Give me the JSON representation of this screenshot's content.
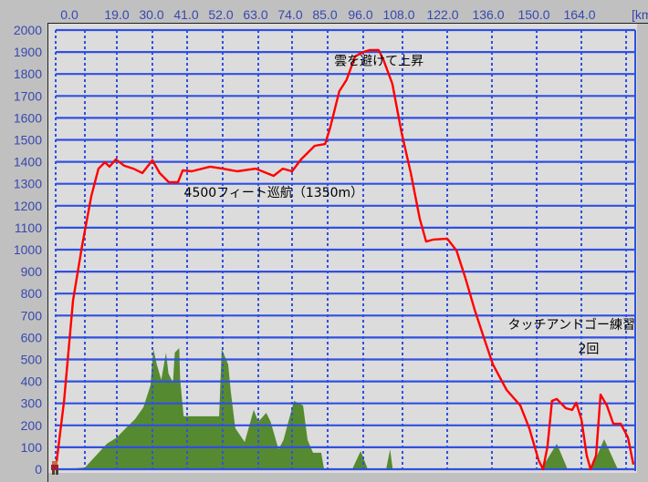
{
  "chart_data": {
    "type": "area",
    "title": "",
    "xlabel": "[km]",
    "ylabel": "",
    "x_tick_labels": [
      "0.0",
      "19.0",
      "30.0",
      "41.0",
      "52.0",
      "63.0",
      "74.0",
      "85.0",
      "96.0",
      "108.0",
      "122.0",
      "136.0",
      "150.0",
      "164.0"
    ],
    "y_tick_labels": [
      "2000",
      "1900",
      "1800",
      "1700",
      "1600",
      "1500",
      "1400",
      "1300",
      "1200",
      "1100",
      "1000",
      "900",
      "800",
      "700",
      "600",
      "500",
      "400",
      "300",
      "200",
      "100",
      "0"
    ],
    "ylim": [
      0,
      2000
    ],
    "xlim": [
      0,
      181
    ],
    "grid": true,
    "x_scale": "non-uniform (tick labels at equal-ish intervals)",
    "colors": {
      "altitude": "#ff0000",
      "terrain": "#558a30",
      "grid": "#3050e0",
      "plot_bg": "#dcdcdc",
      "outer_bg": "#c0c0c0",
      "tick_text": "#3848b0"
    },
    "series": [
      {
        "key": "altitude",
        "points": [
          [
            0,
            0
          ],
          [
            2.6,
            311
          ],
          [
            5.4,
            768
          ],
          [
            8.2,
            1017
          ],
          [
            11.1,
            1245
          ],
          [
            13.3,
            1369
          ],
          [
            15.3,
            1398
          ],
          [
            16.7,
            1378
          ],
          [
            18.7,
            1411
          ],
          [
            21.3,
            1382
          ],
          [
            24.1,
            1369
          ],
          [
            26.9,
            1349
          ],
          [
            30,
            1407
          ],
          [
            32.3,
            1349
          ],
          [
            35.2,
            1307
          ],
          [
            38.1,
            1307
          ],
          [
            39.6,
            1361
          ],
          [
            42.4,
            1357
          ],
          [
            48.1,
            1378
          ],
          [
            52,
            1369
          ],
          [
            56.5,
            1357
          ],
          [
            62.2,
            1369
          ],
          [
            68,
            1336
          ],
          [
            71,
            1369
          ],
          [
            74,
            1357
          ],
          [
            76.8,
            1411
          ],
          [
            81,
            1473
          ],
          [
            84.2,
            1481
          ],
          [
            85.8,
            1556
          ],
          [
            88.6,
            1722
          ],
          [
            90.8,
            1772
          ],
          [
            93.5,
            1880
          ],
          [
            96,
            1900
          ],
          [
            98,
            1909
          ],
          [
            100.7,
            1909
          ],
          [
            102.1,
            1867
          ],
          [
            104.9,
            1755
          ],
          [
            107.7,
            1535
          ],
          [
            110.6,
            1349
          ],
          [
            113.4,
            1141
          ],
          [
            115.4,
            1037
          ],
          [
            117.7,
            1046
          ],
          [
            122,
            1050
          ],
          [
            124.9,
            996
          ],
          [
            127.7,
            871
          ],
          [
            130.6,
            726
          ],
          [
            133.4,
            602
          ],
          [
            136.3,
            477
          ],
          [
            140.6,
            361
          ],
          [
            144.9,
            290
          ],
          [
            147.7,
            187
          ],
          [
            150.6,
            41
          ],
          [
            152,
            0
          ],
          [
            153.4,
            104
          ],
          [
            154.8,
            311
          ],
          [
            156.3,
            320
          ],
          [
            159.1,
            278
          ],
          [
            161.1,
            270
          ],
          [
            162.4,
            303
          ],
          [
            164,
            228
          ],
          [
            165.7,
            62
          ],
          [
            166.9,
            0
          ],
          [
            168.6,
            62
          ],
          [
            170,
            340
          ],
          [
            172,
            290
          ],
          [
            174,
            207
          ],
          [
            176.3,
            207
          ],
          [
            178.6,
            145
          ],
          [
            180.4,
            21
          ]
        ]
      },
      {
        "key": "terrain",
        "points": [
          [
            0,
            0
          ],
          [
            4,
            2
          ],
          [
            9.1,
            8
          ],
          [
            15.9,
            116
          ],
          [
            19,
            145
          ],
          [
            21.8,
            187
          ],
          [
            24.6,
            228
          ],
          [
            27.2,
            282
          ],
          [
            29.4,
            382
          ],
          [
            30.3,
            548
          ],
          [
            31.4,
            477
          ],
          [
            32.8,
            407
          ],
          [
            34.3,
            531
          ],
          [
            35.1,
            436
          ],
          [
            36.5,
            394
          ],
          [
            37.1,
            531
          ],
          [
            38.5,
            552
          ],
          [
            38.8,
            407
          ],
          [
            39.9,
            241
          ],
          [
            50.9,
            241
          ],
          [
            51.7,
            548
          ],
          [
            53.7,
            477
          ],
          [
            54.5,
            353
          ],
          [
            55.9,
            187
          ],
          [
            58.8,
            124
          ],
          [
            61.6,
            270
          ],
          [
            63,
            216
          ],
          [
            65.6,
            257
          ],
          [
            67,
            216
          ],
          [
            69.6,
            91
          ],
          [
            71.2,
            133
          ],
          [
            74.6,
            311
          ],
          [
            77.4,
            290
          ],
          [
            78.8,
            133
          ],
          [
            80.5,
            75
          ],
          [
            83,
            75
          ],
          [
            83.9,
            0
          ],
          [
            92.6,
            0
          ],
          [
            95.2,
            83
          ],
          [
            97.4,
            0
          ],
          [
            103,
            0
          ],
          [
            104.2,
            91
          ],
          [
            105,
            0
          ],
          [
            151.4,
            0
          ],
          [
            156.3,
            116
          ],
          [
            159.7,
            0
          ],
          [
            167.1,
            0
          ],
          [
            171.1,
            137
          ],
          [
            175.4,
            0
          ],
          [
            181,
            0
          ]
        ]
      }
    ],
    "annotations": [
      {
        "text": "雲を避けて上昇",
        "x": 87,
        "y": 1840
      },
      {
        "text": "4500フィート巡航（1350m）",
        "x": 40,
        "y": 1240
      },
      {
        "text": "タッチアンドゴー練習",
        "x": 141,
        "y": 640
      },
      {
        "text": "2回",
        "x": 163,
        "y": 530
      }
    ]
  }
}
